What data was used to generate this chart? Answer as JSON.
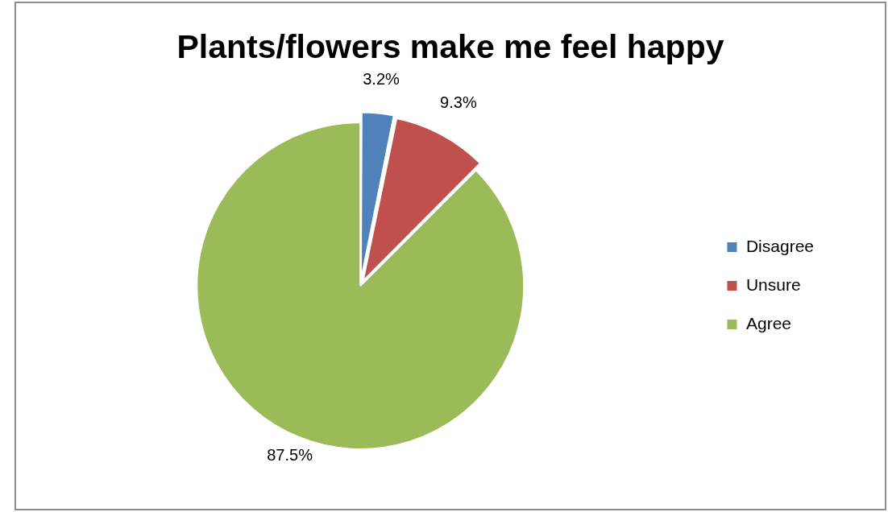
{
  "chart_data": {
    "type": "pie",
    "title": "Plants/flowers make me feel happy",
    "categories": [
      "Disagree",
      "Unsure",
      "Agree"
    ],
    "values": [
      3.2,
      9.3,
      87.5
    ],
    "colors": [
      "#4f81bd",
      "#c0504d",
      "#9bbb59"
    ],
    "value_labels": [
      "3.2%",
      "9.3%",
      "87.5%"
    ],
    "legend": "right"
  }
}
